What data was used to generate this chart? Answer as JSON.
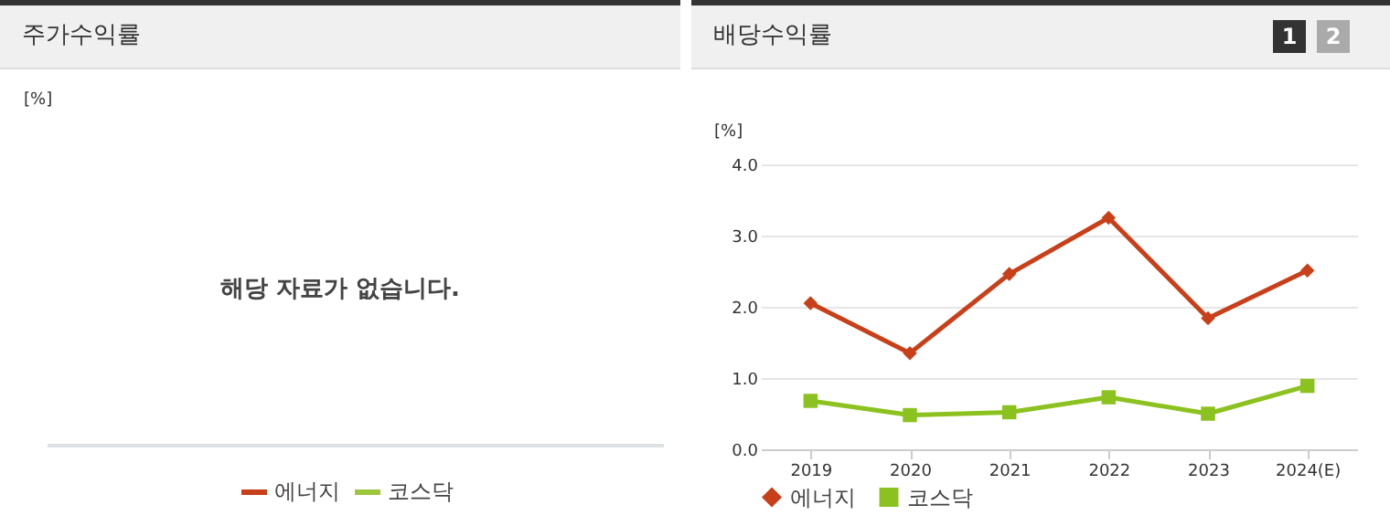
{
  "chart_data": [
    {
      "type": "other",
      "title": "주가수익률",
      "ylabel": "[%]",
      "annotations": [
        "해당 자료가 없습니다."
      ],
      "legend": "bottom",
      "series": [
        {
          "name": "에너지",
          "color": "#c8401a"
        },
        {
          "name": "코스닥",
          "color": "#9cc63b"
        }
      ]
    },
    {
      "type": "line",
      "title": "배당수익률",
      "ylabel": "[%]",
      "categories": [
        "2019",
        "2020",
        "2021",
        "2022",
        "2023",
        "2024(E)"
      ],
      "ylim": [
        0,
        4
      ],
      "yticks": [
        {
          "value": 0,
          "label": "0.0"
        },
        {
          "value": 1,
          "label": "1.0"
        },
        {
          "value": 2,
          "label": "2.0"
        },
        {
          "value": 3,
          "label": "3.0"
        },
        {
          "value": 4,
          "label": "4.0"
        }
      ],
      "grid": "y",
      "legend": "bottom",
      "line_style": "solid",
      "annotations": [
        "1",
        "2"
      ],
      "series": [
        {
          "name": "에너지",
          "color": "#c8401a",
          "marker": "diamond",
          "values": [
            2.05,
            1.35,
            2.46,
            3.25,
            1.84,
            2.51
          ]
        },
        {
          "name": "코스닥",
          "color": "#8cc21f",
          "marker": "square",
          "values": [
            0.68,
            0.48,
            0.52,
            0.73,
            0.5,
            0.89
          ]
        }
      ]
    }
  ]
}
